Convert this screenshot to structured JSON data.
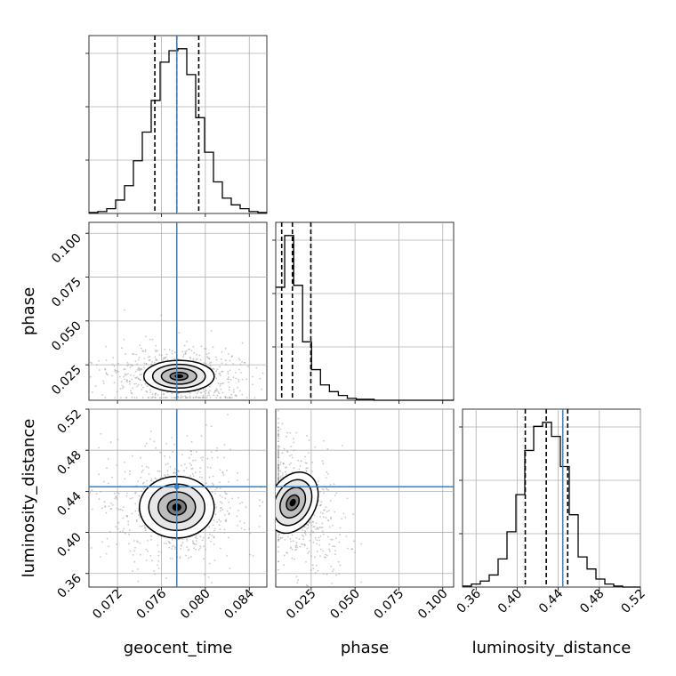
{
  "chart_data": {
    "type": "corner",
    "parameters": [
      "geocent_time",
      "phase",
      "luminosity_distance"
    ],
    "axis_labels": {
      "x": [
        "geocent_time",
        "phase",
        "luminosity_distance"
      ],
      "y": [
        "phase",
        "luminosity_distance"
      ]
    },
    "ranges": {
      "geocent_time": [
        0.0694,
        0.0856
      ],
      "phase": [
        0.0048,
        0.1062
      ],
      "luminosity_distance": [
        0.3468,
        0.52
      ]
    },
    "ticks": {
      "geocent_time": {
        "values": [
          0.072,
          0.076,
          0.08,
          0.084
        ],
        "labels": [
          "0.072",
          "0.076",
          "0.080",
          "0.084"
        ]
      },
      "phase": {
        "values": [
          0.025,
          0.05,
          0.075,
          0.1
        ],
        "labels": [
          "0.025",
          "0.050",
          "0.075",
          "0.100"
        ]
      },
      "luminosity_distance": {
        "values": [
          0.36,
          0.4,
          0.44,
          0.48,
          0.52
        ],
        "labels": [
          "0.36",
          "0.40",
          "0.44",
          "0.48",
          "0.52"
        ]
      }
    },
    "injection": {
      "geocent_time": 0.0774,
      "phase": null,
      "luminosity_distance": 0.4444
    },
    "quantiles": {
      "geocent_time": [
        0.0754,
        0.0774,
        0.0794
      ],
      "phase": [
        0.0082,
        0.0143,
        0.0248
      ],
      "luminosity_distance": [
        0.4079,
        0.4283,
        0.4492
      ]
    },
    "histograms": {
      "geocent_time": {
        "edges": [
          0.0694,
          0.07021,
          0.07102,
          0.07183,
          0.07264,
          0.07345,
          0.07426,
          0.07507,
          0.07588,
          0.07669,
          0.0775,
          0.07831,
          0.07912,
          0.07993,
          0.08074,
          0.08155,
          0.08236,
          0.08317,
          0.08398,
          0.08479,
          0.0856
        ],
        "counts": [
          1,
          2,
          5,
          14,
          29,
          55,
          85,
          118,
          158,
          170,
          172,
          145,
          100,
          64,
          33,
          16,
          9,
          5,
          2,
          1
        ]
      },
      "phase": {
        "edges": [
          0.0048,
          0.0099,
          0.015,
          0.0201,
          0.0252,
          0.0303,
          0.0354,
          0.0405,
          0.0456,
          0.0507,
          0.0558,
          0.0609,
          0.066,
          0.0711,
          0.0762,
          0.0813,
          0.0864,
          0.0915,
          0.0966,
          0.1017,
          0.1062
        ],
        "counts": [
          118,
          172,
          120,
          61,
          32,
          16,
          9,
          5,
          2,
          1,
          1,
          0,
          0,
          0,
          0,
          0,
          0,
          0,
          0,
          0
        ]
      },
      "luminosity_distance": {
        "edges": [
          0.3468,
          0.35546,
          0.36412,
          0.37278,
          0.38144,
          0.3901,
          0.39876,
          0.40742,
          0.41608,
          0.42474,
          0.4334,
          0.44206,
          0.45072,
          0.45938,
          0.46804,
          0.4767,
          0.48536,
          0.49402,
          0.50268,
          0.51134,
          0.52
        ],
        "counts": [
          1,
          3,
          6,
          12,
          28,
          55,
          92,
          136,
          160,
          164,
          150,
          120,
          72,
          30,
          18,
          8,
          3,
          1,
          0,
          0
        ]
      }
    },
    "joint": {
      "phase_vs_geocent_time": {
        "x_mean": 0.0776,
        "y_mean": 0.0185,
        "x_sigma": 0.0016,
        "y_sigma": 0.0045
      },
      "luminosity_distance_vs_geocent_time": {
        "x_mean": 0.0774,
        "y_mean": 0.4245,
        "x_sigma": 0.0017,
        "y_sigma": 0.015
      },
      "luminosity_distance_vs_phase": {
        "x_mean": 0.0145,
        "y_mean": 0.429,
        "x_sigma": 0.0068,
        "y_sigma": 0.015
      }
    }
  }
}
